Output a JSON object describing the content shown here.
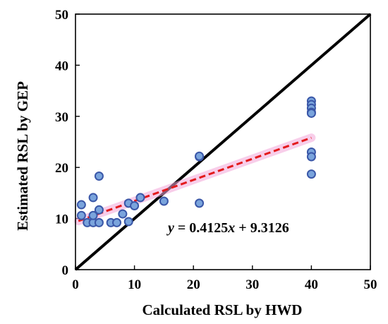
{
  "chart_data": {
    "type": "scatter",
    "xlabel": "Calculated RSL by HWD",
    "ylabel": "Estimated RSL by GEP",
    "xlim": [
      0,
      50
    ],
    "ylim": [
      0,
      50
    ],
    "xticks": [
      "0",
      "10",
      "20",
      "30",
      "40",
      "50"
    ],
    "yticks": [
      "0",
      "10",
      "20",
      "30",
      "40",
      "50"
    ],
    "grid": false,
    "series": [
      {
        "points": [
          [
            1,
            12.7
          ],
          [
            1,
            10.6
          ],
          [
            2,
            9.2
          ],
          [
            3,
            9.2
          ],
          [
            3,
            10.6
          ],
          [
            3,
            14.1
          ],
          [
            4,
            9.2
          ],
          [
            4,
            11.7
          ],
          [
            4,
            18.3
          ],
          [
            6,
            9.2
          ],
          [
            7,
            9.2
          ],
          [
            8,
            10.9
          ],
          [
            9,
            9.4
          ],
          [
            9,
            13
          ],
          [
            10,
            12.5
          ],
          [
            11,
            14.1
          ],
          [
            15,
            13.4
          ],
          [
            21,
            22.1
          ],
          [
            21,
            22.2
          ],
          [
            21,
            13
          ],
          [
            40,
            33
          ],
          [
            40,
            32.3
          ],
          [
            40,
            31.6
          ],
          [
            40,
            30.8
          ],
          [
            40,
            30.6
          ],
          [
            40,
            23
          ],
          [
            40,
            22.1
          ],
          [
            40,
            18.7
          ]
        ],
        "color": "#7aa4dc",
        "edge_color": "#3a57a8"
      }
    ],
    "reference_line": {
      "from": [
        0,
        0
      ],
      "to": [
        50,
        50
      ],
      "color": "#000000"
    },
    "trendline": {
      "slope": 0.4125,
      "intercept": 9.3126,
      "x_range": [
        0.5,
        40
      ],
      "color": "#e31a1c",
      "equation_prefix": "y",
      "equation_mid": " = 0.4125",
      "equation_var": "x",
      "equation_suffix": " + 9.3126"
    }
  }
}
